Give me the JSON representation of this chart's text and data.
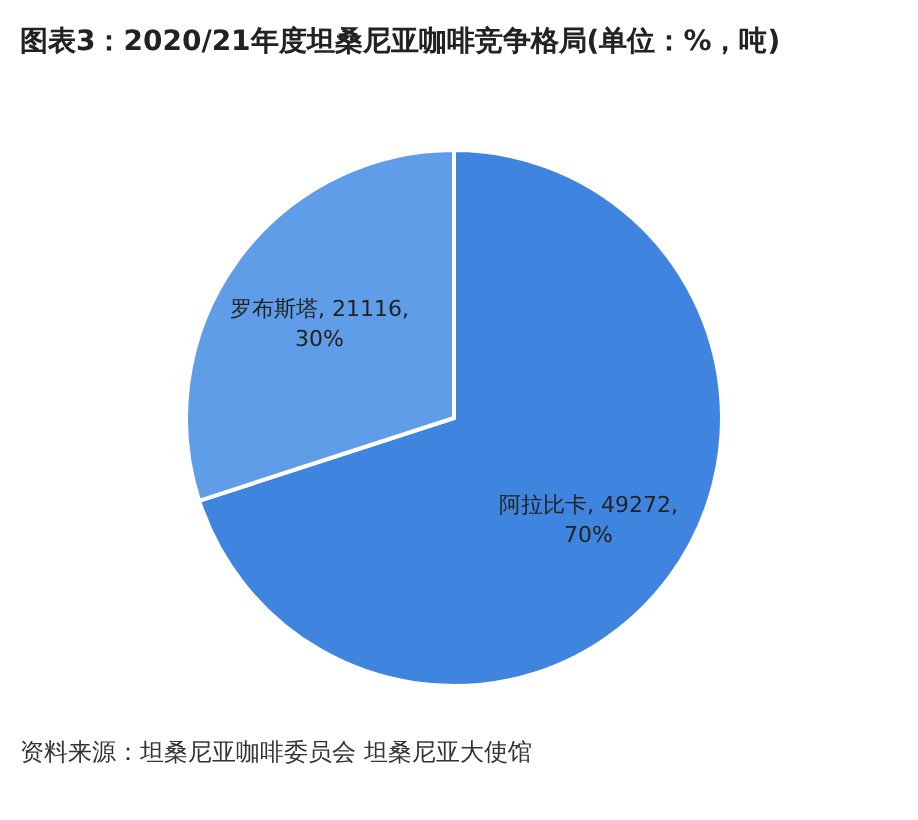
{
  "chart_data": {
    "type": "pie",
    "title": "图表3：2020/21年度坦桑尼亚咖啡竞争格局(单位：%，吨)",
    "categories": [
      "阿拉比卡",
      "罗布斯塔"
    ],
    "values": [
      49272,
      21116
    ],
    "colors": [
      "#3f85e0",
      "#5f9de8"
    ],
    "value_labels": [
      "49272, 70%",
      "21116, 30%"
    ],
    "annotations": [
      "资料来源：坦桑尼亚咖啡委员会 坦桑尼亚大使馆"
    ]
  }
}
